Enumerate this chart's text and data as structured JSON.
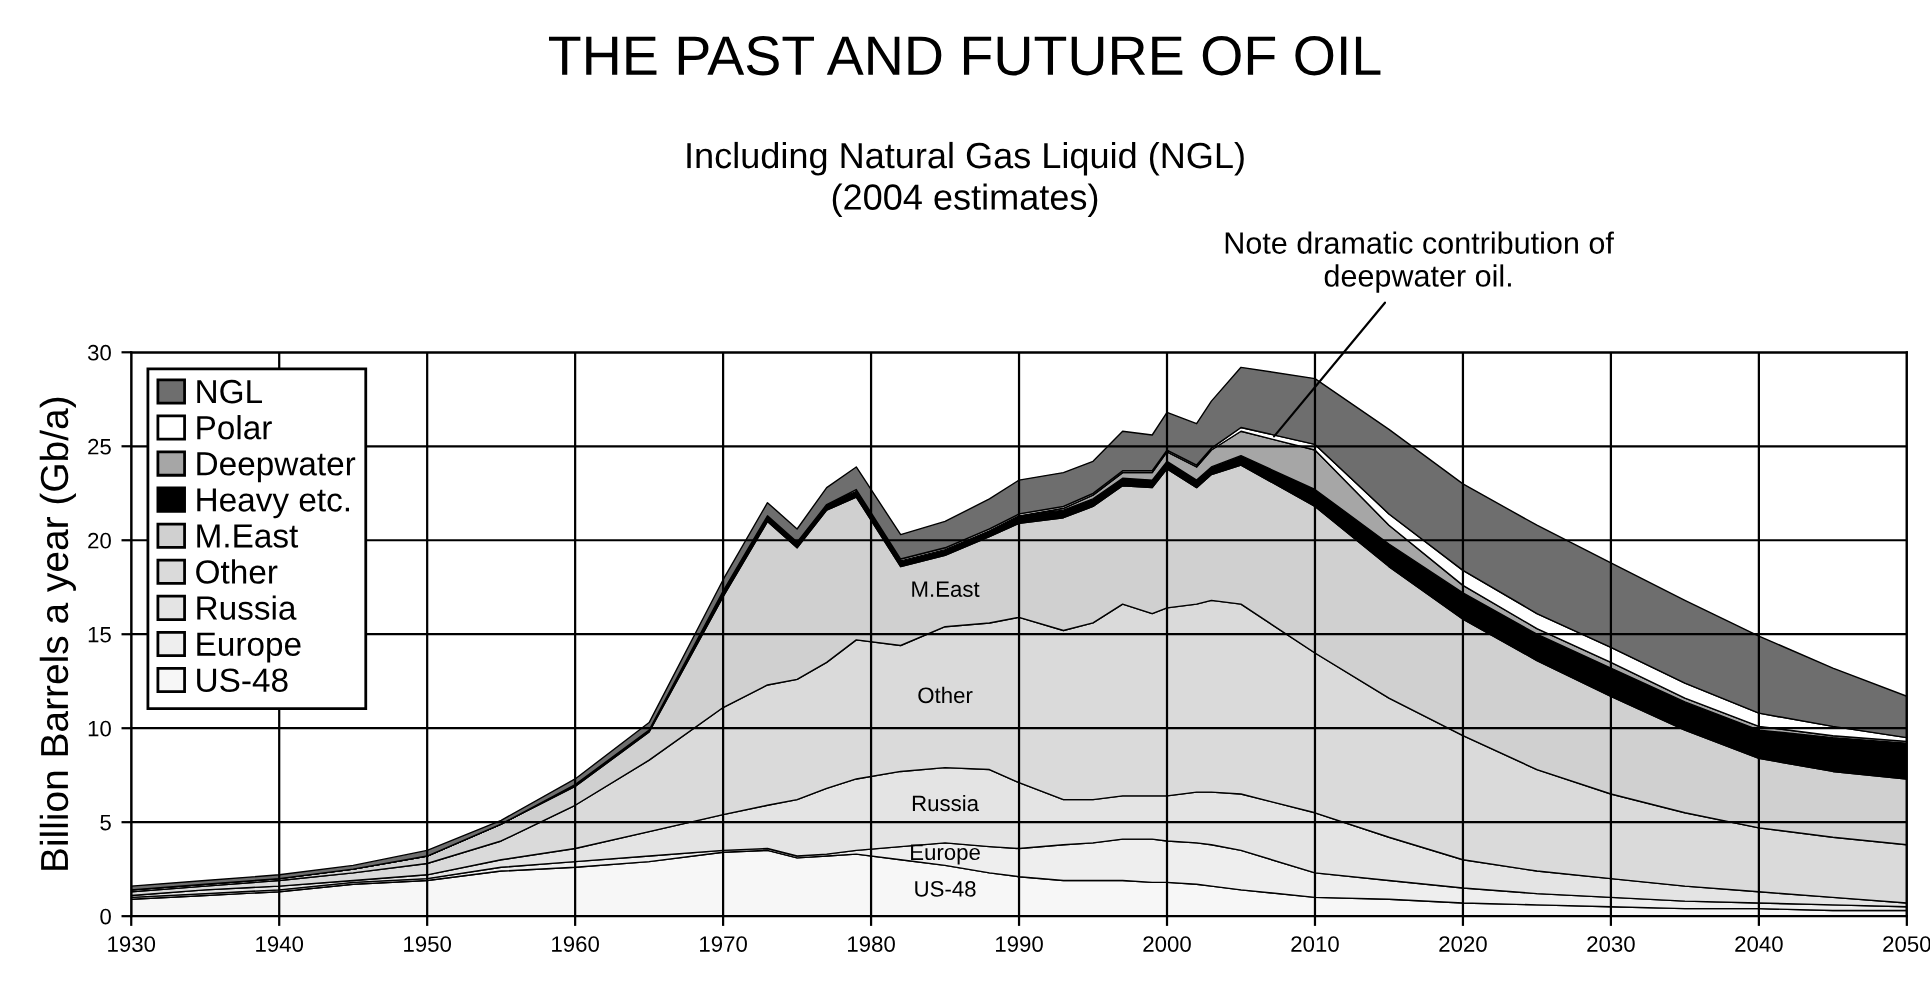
{
  "chart_data": {
    "type": "area",
    "stacked": true,
    "title": "THE PAST AND FUTURE OF OIL",
    "subtitle": "Including Natural Gas Liquid (NGL)\n(2004 estimates)",
    "ylabel": "Billion Barrels a year (Gb/a)",
    "x": [
      1930,
      1935,
      1940,
      1945,
      1950,
      1955,
      1960,
      1965,
      1970,
      1973,
      1975,
      1977,
      1979,
      1982,
      1985,
      1988,
      1990,
      1993,
      1995,
      1997,
      1999,
      2000,
      2002,
      2003,
      2005,
      2010,
      2015,
      2020,
      2025,
      2030,
      2035,
      2040,
      2045,
      2050
    ],
    "series": [
      {
        "name": "US-48",
        "color": "#f7f7f7",
        "values": [
          0.9,
          1.1,
          1.3,
          1.7,
          1.9,
          2.4,
          2.6,
          2.9,
          3.4,
          3.5,
          3.1,
          3.2,
          3.3,
          3.0,
          2.7,
          2.3,
          2.1,
          1.9,
          1.9,
          1.9,
          1.8,
          1.8,
          1.7,
          1.6,
          1.4,
          1.0,
          0.9,
          0.7,
          0.6,
          0.5,
          0.4,
          0.4,
          0.3,
          0.3
        ]
      },
      {
        "name": "Europe",
        "color": "#eeeeee",
        "values": [
          0.1,
          0.1,
          0.1,
          0.1,
          0.1,
          0.2,
          0.3,
          0.3,
          0.1,
          0.1,
          0.1,
          0.1,
          0.2,
          0.7,
          1.2,
          1.4,
          1.5,
          1.9,
          2.0,
          2.2,
          2.3,
          2.2,
          2.2,
          2.2,
          2.1,
          1.3,
          1.0,
          0.8,
          0.6,
          0.5,
          0.4,
          0.3,
          0.3,
          0.2
        ]
      },
      {
        "name": "Russia",
        "color": "#e4e4e4",
        "values": [
          0.1,
          0.2,
          0.2,
          0.1,
          0.2,
          0.4,
          0.7,
          1.3,
          1.9,
          2.3,
          3.0,
          3.5,
          3.8,
          4.0,
          4.0,
          4.1,
          3.5,
          2.4,
          2.3,
          2.3,
          2.3,
          2.4,
          2.7,
          2.8,
          3.0,
          3.2,
          2.3,
          1.5,
          1.2,
          1.0,
          0.8,
          0.6,
          0.4,
          0.2
        ]
      },
      {
        "name": "Other",
        "color": "#dadada",
        "values": [
          0.2,
          0.2,
          0.3,
          0.4,
          0.6,
          1.0,
          2.3,
          3.8,
          5.7,
          6.4,
          6.4,
          6.7,
          7.4,
          6.7,
          7.5,
          7.8,
          8.8,
          9.0,
          9.4,
          10.2,
          9.7,
          10.0,
          10.0,
          10.2,
          10.1,
          8.5,
          7.4,
          6.6,
          5.4,
          4.5,
          3.9,
          3.4,
          3.2,
          3.1
        ]
      },
      {
        "name": "M.East",
        "color": "#d0d0d0",
        "values": [
          0.1,
          0.1,
          0.1,
          0.2,
          0.4,
          0.9,
          1.0,
          1.5,
          5.9,
          8.7,
          7.0,
          8.1,
          7.6,
          4.2,
          3.8,
          4.6,
          5.0,
          6.0,
          6.2,
          6.3,
          6.7,
          7.4,
          6.2,
          6.7,
          7.4,
          7.8,
          7.0,
          6.2,
          5.8,
          5.2,
          4.4,
          3.7,
          3.5,
          3.5
        ]
      },
      {
        "name": "Heavy etc.",
        "color": "#000000",
        "values": [
          0,
          0,
          0,
          0,
          0,
          0,
          0.1,
          0.1,
          0.3,
          0.3,
          0.3,
          0.3,
          0.3,
          0.3,
          0.3,
          0.3,
          0.4,
          0.4,
          0.4,
          0.4,
          0.4,
          0.4,
          0.4,
          0.4,
          0.5,
          0.9,
          1.2,
          1.4,
          1.4,
          1.5,
          1.5,
          1.5,
          1.8,
          1.9
        ]
      },
      {
        "name": "Deepwater",
        "color": "#a6a6a6",
        "values": [
          0,
          0,
          0,
          0,
          0,
          0,
          0,
          0,
          0,
          0,
          0,
          0,
          0,
          0,
          0,
          0,
          0,
          0.1,
          0.2,
          0.3,
          0.4,
          0.5,
          0.7,
          0.9,
          1.3,
          2.1,
          1.0,
          0.4,
          0.3,
          0.3,
          0.2,
          0.2,
          0.1,
          0.1
        ]
      },
      {
        "name": "Polar",
        "color": "#ffffff",
        "values": [
          0,
          0,
          0,
          0,
          0,
          0,
          0,
          0,
          0,
          0,
          0,
          0,
          0.1,
          0.1,
          0.1,
          0.1,
          0.1,
          0.1,
          0.1,
          0.1,
          0.1,
          0.1,
          0.1,
          0.1,
          0.2,
          0.3,
          0.6,
          0.8,
          0.8,
          0.8,
          0.8,
          0.7,
          0.5,
          0.2
        ]
      },
      {
        "name": "NGL",
        "color": "#6e6e6e",
        "values": [
          0.2,
          0.2,
          0.2,
          0.2,
          0.3,
          0.2,
          0.3,
          0.4,
          0.6,
          0.7,
          0.7,
          0.9,
          1.2,
          1.3,
          1.4,
          1.6,
          1.8,
          1.8,
          1.7,
          2.1,
          1.9,
          2.0,
          2.2,
          2.5,
          3.2,
          3.5,
          4.5,
          4.6,
          4.7,
          4.5,
          4.4,
          4.1,
          3.1,
          2.2
        ]
      }
    ],
    "annotations": [
      {
        "text": "Note dramatic contribution of\ndeepwater oil.",
        "x": 2007,
        "y": 25.3
      },
      "M.East",
      "Other",
      "Russia",
      "Europe",
      "US-48"
    ],
    "xlim": [
      1930,
      2050
    ],
    "xticks": [
      1930,
      1940,
      1950,
      1960,
      1970,
      1980,
      1990,
      2000,
      2010,
      2020,
      2030,
      2040,
      2050
    ],
    "ylim": [
      0,
      30
    ],
    "yticks": [
      0,
      5,
      10,
      15,
      20,
      25,
      30
    ],
    "grid": true,
    "legend": "top left"
  }
}
